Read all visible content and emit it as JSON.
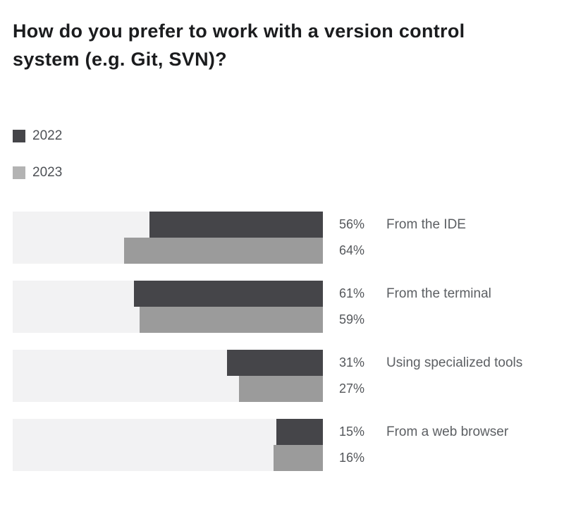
{
  "header": {
    "title_lines": [
      "How do you prefer to work with a version control",
      "system (e.g. Git, SVN)?"
    ]
  },
  "chart_data": {
    "type": "bar",
    "orientation": "horizontal",
    "title": "How do you prefer to work with a version control system (e.g. Git, SVN)?",
    "categories": [
      "From the IDE",
      "From the terminal",
      "Using specialized tools",
      "From a web browser"
    ],
    "series": [
      {
        "name": "2022",
        "color": "#454549",
        "legend_color": "#454549",
        "values": [
          56,
          61,
          31,
          15
        ]
      },
      {
        "name": "2023",
        "color": "#9b9b9b",
        "legend_color": "#b3b3b3",
        "values": [
          64,
          59,
          27,
          16
        ]
      }
    ],
    "value_unit": "%",
    "xlim": [
      0,
      100
    ],
    "track_color": "#f2f2f3",
    "legend_position": "top-left",
    "value_label_position": "outside-right",
    "bar_alignment": "right",
    "grid": false
  }
}
